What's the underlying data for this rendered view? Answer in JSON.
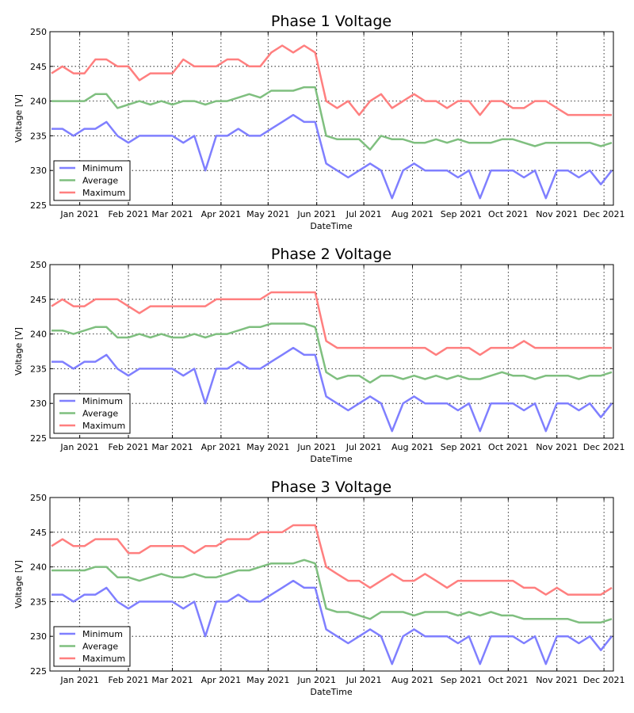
{
  "chart_data": [
    {
      "type": "line",
      "title": "Phase 1 Voltage",
      "xlabel": "DateTime",
      "ylabel": "Voltage [V]",
      "ylim": [
        225,
        250
      ],
      "yticks": [
        "225",
        "230",
        "235",
        "240",
        "245",
        "250"
      ],
      "xlim": [
        "2020-12-13",
        "2021-12-07"
      ],
      "xticks": [
        "Jan 2021",
        "Feb 2021",
        "Mar 2021",
        "Apr 2021",
        "May 2021",
        "Jun 2021",
        "Jul 2021",
        "Aug 2021",
        "Sep 2021",
        "Oct 2021",
        "Nov 2021",
        "Dec 2021"
      ],
      "grid": true,
      "legend": "lower-left",
      "x_start": "2020-12-14",
      "x_step_days": 7,
      "series": [
        {
          "name": "Minimum",
          "color": "#7f7fff",
          "values": [
            236,
            236,
            235,
            236,
            236,
            237,
            235,
            234,
            235,
            235,
            235,
            235,
            234,
            235,
            230,
            235,
            235,
            236,
            235,
            235,
            236,
            237,
            238,
            237,
            237,
            231,
            230,
            229,
            230,
            231,
            230,
            226,
            230,
            231,
            230,
            230,
            230,
            229,
            230,
            226,
            230,
            230,
            230,
            229,
            230,
            226,
            230,
            230,
            229,
            230,
            228,
            230
          ]
        },
        {
          "name": "Average",
          "color": "#7fbf7f",
          "values": [
            240,
            240,
            240,
            240,
            241,
            241,
            239,
            239.5,
            240,
            239.5,
            240,
            239.5,
            240,
            240,
            239.5,
            240,
            240,
            240.5,
            241,
            240.5,
            241.5,
            241.5,
            241.5,
            242,
            242,
            235,
            234.5,
            234.5,
            234.5,
            233,
            235,
            234.5,
            234.5,
            234,
            234,
            234.5,
            234,
            234.5,
            234,
            234,
            234,
            234.5,
            234.5,
            234,
            233.5,
            234,
            234,
            234,
            234,
            234,
            233.5,
            234
          ]
        },
        {
          "name": "Maximum",
          "color": "#ff7f7f",
          "values": [
            244,
            245,
            244,
            244,
            246,
            246,
            245,
            245,
            243,
            244,
            244,
            244,
            246,
            245,
            245,
            245,
            246,
            246,
            245,
            245,
            247,
            248,
            247,
            248,
            247,
            240,
            239,
            240,
            238,
            240,
            241,
            239,
            240,
            241,
            240,
            240,
            239,
            240,
            240,
            238,
            240,
            240,
            239,
            239,
            240,
            240,
            239,
            238,
            238,
            238,
            238,
            238
          ]
        }
      ]
    },
    {
      "type": "line",
      "title": "Phase 2 Voltage",
      "xlabel": "DateTime",
      "ylabel": "Voltage [V]",
      "ylim": [
        225,
        250
      ],
      "yticks": [
        "225",
        "230",
        "235",
        "240",
        "245",
        "250"
      ],
      "xlim": [
        "2020-12-13",
        "2021-12-07"
      ],
      "xticks": [
        "Jan 2021",
        "Feb 2021",
        "Mar 2021",
        "Apr 2021",
        "May 2021",
        "Jun 2021",
        "Jul 2021",
        "Aug 2021",
        "Sep 2021",
        "Oct 2021",
        "Nov 2021",
        "Dec 2021"
      ],
      "grid": true,
      "legend": "lower-left",
      "x_start": "2020-12-14",
      "x_step_days": 7,
      "series": [
        {
          "name": "Minimum",
          "color": "#7f7fff",
          "values": [
            236,
            236,
            235,
            236,
            236,
            237,
            235,
            234,
            235,
            235,
            235,
            235,
            234,
            235,
            230,
            235,
            235,
            236,
            235,
            235,
            236,
            237,
            238,
            237,
            237,
            231,
            230,
            229,
            230,
            231,
            230,
            226,
            230,
            231,
            230,
            230,
            230,
            229,
            230,
            226,
            230,
            230,
            230,
            229,
            230,
            226,
            230,
            230,
            229,
            230,
            228,
            230
          ]
        },
        {
          "name": "Average",
          "color": "#7fbf7f",
          "values": [
            240.5,
            240.5,
            240,
            240.5,
            241,
            241,
            239.5,
            239.5,
            240,
            239.5,
            240,
            239.5,
            239.5,
            240,
            239.5,
            240,
            240,
            240.5,
            241,
            241,
            241.5,
            241.5,
            241.5,
            241.5,
            241,
            234.5,
            233.5,
            234,
            234,
            233,
            234,
            234,
            233.5,
            234,
            233.5,
            234,
            233.5,
            234,
            233.5,
            233.5,
            234,
            234.5,
            234,
            234,
            233.5,
            234,
            234,
            234,
            233.5,
            234,
            234,
            234.5
          ]
        },
        {
          "name": "Maximum",
          "color": "#ff7f7f",
          "values": [
            244,
            245,
            244,
            244,
            245,
            245,
            245,
            244,
            243,
            244,
            244,
            244,
            244,
            244,
            244,
            245,
            245,
            245,
            245,
            245,
            246,
            246,
            246,
            246,
            246,
            239,
            238,
            238,
            238,
            238,
            238,
            238,
            238,
            238,
            238,
            237,
            238,
            238,
            238,
            237,
            238,
            238,
            238,
            239,
            238,
            238,
            238,
            238,
            238,
            238,
            238,
            238
          ]
        }
      ]
    },
    {
      "type": "line",
      "title": "Phase 3 Voltage",
      "xlabel": "DateTime",
      "ylabel": "Voltage [V]",
      "ylim": [
        225,
        250
      ],
      "yticks": [
        "225",
        "230",
        "235",
        "240",
        "245",
        "250"
      ],
      "xlim": [
        "2020-12-13",
        "2021-12-07"
      ],
      "xticks": [
        "Jan 2021",
        "Feb 2021",
        "Mar 2021",
        "Apr 2021",
        "May 2021",
        "Jun 2021",
        "Jul 2021",
        "Aug 2021",
        "Sep 2021",
        "Oct 2021",
        "Nov 2021",
        "Dec 2021"
      ],
      "grid": true,
      "legend": "lower-left",
      "x_start": "2020-12-14",
      "x_step_days": 7,
      "series": [
        {
          "name": "Minimum",
          "color": "#7f7fff",
          "values": [
            236,
            236,
            235,
            236,
            236,
            237,
            235,
            234,
            235,
            235,
            235,
            235,
            234,
            235,
            230,
            235,
            235,
            236,
            235,
            235,
            236,
            237,
            238,
            237,
            237,
            231,
            230,
            229,
            230,
            231,
            230,
            226,
            230,
            231,
            230,
            230,
            230,
            229,
            230,
            226,
            230,
            230,
            230,
            229,
            230,
            226,
            230,
            230,
            229,
            230,
            228,
            230
          ]
        },
        {
          "name": "Average",
          "color": "#7fbf7f",
          "values": [
            239.5,
            239.5,
            239.5,
            239.5,
            240,
            240,
            238.5,
            238.5,
            238,
            238.5,
            239,
            238.5,
            238.5,
            239,
            238.5,
            238.5,
            239,
            239.5,
            239.5,
            240,
            240.5,
            240.5,
            240.5,
            241,
            240.5,
            234,
            233.5,
            233.5,
            233,
            232.5,
            233.5,
            233.5,
            233.5,
            233,
            233.5,
            233.5,
            233.5,
            233,
            233.5,
            233,
            233.5,
            233,
            233,
            232.5,
            232.5,
            232.5,
            232.5,
            232.5,
            232,
            232,
            232,
            232.5
          ]
        },
        {
          "name": "Maximum",
          "color": "#ff7f7f",
          "values": [
            243,
            244,
            243,
            243,
            244,
            244,
            244,
            242,
            242,
            243,
            243,
            243,
            243,
            242,
            243,
            243,
            244,
            244,
            244,
            245,
            245,
            245,
            246,
            246,
            246,
            240,
            239,
            238,
            238,
            237,
            238,
            239,
            238,
            238,
            239,
            238,
            237,
            238,
            238,
            238,
            238,
            238,
            238,
            237,
            237,
            236,
            237,
            236,
            236,
            236,
            236,
            237
          ]
        }
      ]
    }
  ]
}
